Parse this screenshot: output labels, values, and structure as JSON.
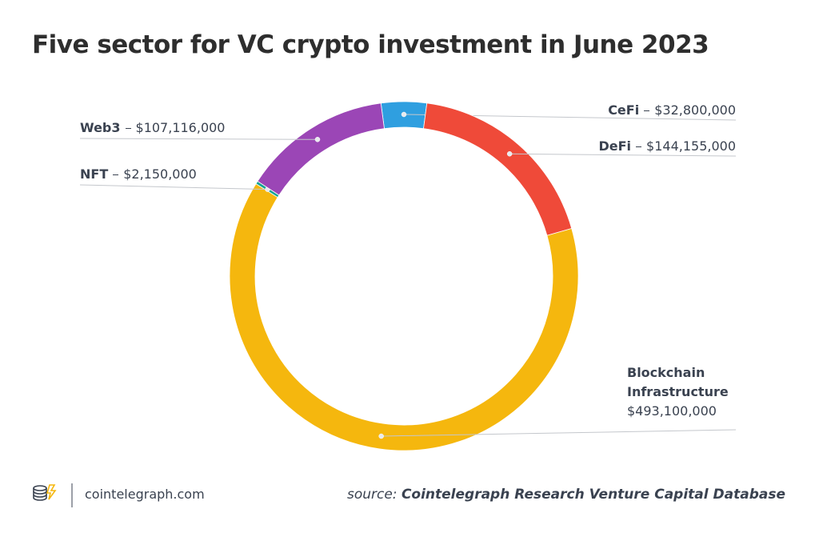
{
  "chart_data": {
    "type": "donut",
    "title": "Five sector for VC crypto investment in June 2023",
    "series": [
      {
        "name": "CeFi",
        "color": "#2f9fe0",
        "values": [
          32800000
        ],
        "value_labels": [
          "$32,800,000"
        ]
      },
      {
        "name": "DeFi",
        "color": "#ef4a39",
        "values": [
          144155000
        ],
        "value_labels": [
          "$144,155,000"
        ]
      },
      {
        "name": "Blockchain Infrastructure",
        "color": "#f5b70e",
        "values": [
          493100000
        ],
        "value_labels": [
          "$493,100,000"
        ]
      },
      {
        "name": "NFT",
        "color": "#16a394",
        "values": [
          2150000
        ],
        "value_labels": [
          "$2,150,000"
        ]
      },
      {
        "name": "Web3",
        "color": "#9b46b6",
        "values": [
          107116000
        ],
        "value_labels": [
          "$107,116,000"
        ]
      }
    ]
  },
  "footer": {
    "site": "cointelegraph.com",
    "source_label": "source:",
    "source_name": "Cointelegraph Research Venture Capital Database"
  }
}
